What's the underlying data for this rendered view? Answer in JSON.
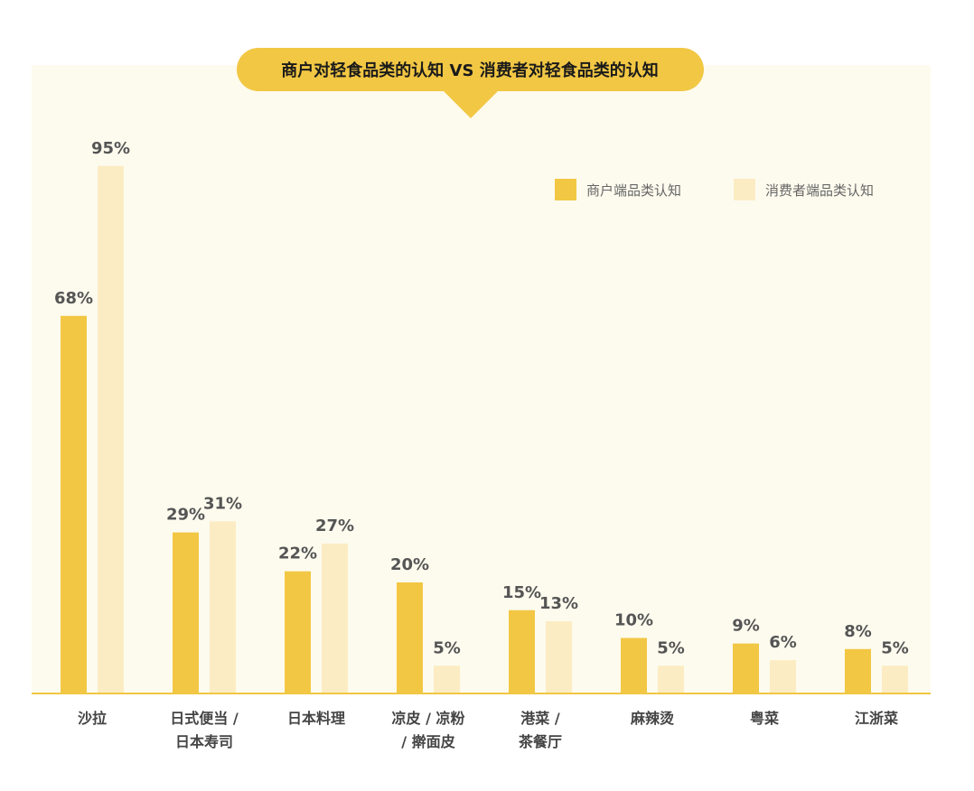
{
  "chart_data": {
    "type": "bar",
    "title": "商户对轻食品类的认知 VS 消费者对轻食品类的认知",
    "xlabel": "",
    "ylabel": "",
    "ylim": [
      0,
      100
    ],
    "grid": false,
    "legend_position": "top-right",
    "categories": [
      [
        "沙拉"
      ],
      [
        "日式便当 /",
        "日本寿司"
      ],
      [
        "日本料理"
      ],
      [
        "凉皮 / 凉粉",
        "/ 擀面皮"
      ],
      [
        "港菜 /",
        "茶餐厅"
      ],
      [
        "麻辣烫"
      ],
      [
        "粤菜"
      ],
      [
        "江浙菜"
      ]
    ],
    "series": [
      {
        "name": "商户端品类认知",
        "color": "#f2c744",
        "values": [
          68,
          29,
          22,
          20,
          15,
          10,
          9,
          8
        ]
      },
      {
        "name": "消费者端品类认知",
        "color": "#fcecc3",
        "values": [
          95,
          31,
          27,
          5,
          13,
          5,
          6,
          5
        ]
      }
    ],
    "value_suffix": "%"
  },
  "colors": {
    "panel": "#fdfbee",
    "accent": "#f2c744",
    "axis": "#f2c744"
  }
}
